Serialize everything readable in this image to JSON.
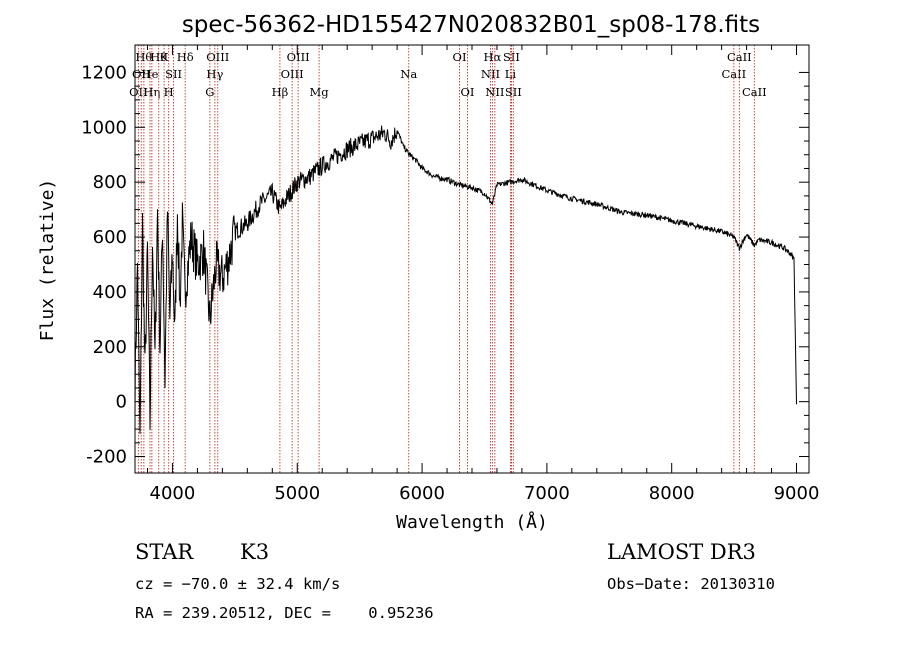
{
  "chart_data": {
    "type": "line",
    "title": "spec-56362-HD155427N020832B01_sp08-178.fits",
    "xlabel": "Wavelength (Å)",
    "ylabel": "Flux (relative)",
    "xlim": [
      3700,
      9100
    ],
    "ylim": [
      -260,
      1300
    ],
    "xticks": [
      4000,
      5000,
      6000,
      7000,
      8000,
      9000
    ],
    "yticks": [
      -200,
      0,
      200,
      400,
      600,
      800,
      1000,
      1200
    ],
    "grid": false,
    "series": [
      {
        "name": "spectrum",
        "x": [
          3700,
          3720,
          3740,
          3760,
          3780,
          3800,
          3820,
          3840,
          3860,
          3880,
          3900,
          3920,
          3940,
          3960,
          3980,
          4000,
          4020,
          4040,
          4060,
          4080,
          4100,
          4150,
          4200,
          4250,
          4300,
          4350,
          4400,
          4450,
          4500,
          4600,
          4700,
          4800,
          4861,
          4900,
          5000,
          5100,
          5200,
          5300,
          5400,
          5500,
          5600,
          5700,
          5750,
          5800,
          5850,
          5900,
          5950,
          6000,
          6100,
          6200,
          6300,
          6400,
          6500,
          6563,
          6600,
          6700,
          6800,
          6900,
          7000,
          7200,
          7400,
          7600,
          7800,
          8000,
          8200,
          8400,
          8498,
          8542,
          8600,
          8662,
          8700,
          8800,
          8900,
          8950,
          8980,
          9000
        ],
        "y": [
          50,
          500,
          -150,
          650,
          100,
          550,
          -80,
          600,
          150,
          700,
          200,
          650,
          80,
          700,
          300,
          550,
          250,
          700,
          350,
          650,
          400,
          600,
          500,
          550,
          300,
          500,
          450,
          520,
          620,
          650,
          720,
          760,
          700,
          730,
          800,
          820,
          860,
          890,
          920,
          940,
          960,
          980,
          950,
          990,
          930,
          900,
          880,
          850,
          820,
          810,
          790,
          780,
          760,
          720,
          790,
          800,
          810,
          790,
          770,
          740,
          720,
          690,
          680,
          660,
          640,
          620,
          600,
          560,
          610,
          570,
          590,
          580,
          560,
          540,
          520,
          -10
        ]
      }
    ],
    "line_markers": [
      {
        "wavelength": 3727,
        "label": "OII",
        "row": 2
      },
      {
        "wavelength": 3750,
        "label": "OII",
        "row": 1
      },
      {
        "wavelength": 3771,
        "label": "Hθ",
        "row": 0
      },
      {
        "wavelength": 3820,
        "label": "He",
        "row": 1
      },
      {
        "wavelength": 3835,
        "label": "Hη",
        "row": 2
      },
      {
        "wavelength": 3890,
        "label": "Hθ",
        "row": 0
      },
      {
        "wavelength": 3933,
        "label": "K",
        "row": 0
      },
      {
        "wavelength": 3970,
        "label": "H",
        "row": 2
      },
      {
        "wavelength": 4009,
        "label": "SII",
        "row": 1
      },
      {
        "wavelength": 4102,
        "label": "Hδ",
        "row": 0
      },
      {
        "wavelength": 4300,
        "label": "G",
        "row": 2
      },
      {
        "wavelength": 4340,
        "label": "Hγ",
        "row": 1
      },
      {
        "wavelength": 4363,
        "label": "OIII",
        "row": 0
      },
      {
        "wavelength": 4861,
        "label": "Hβ",
        "row": 2
      },
      {
        "wavelength": 4959,
        "label": "OIII",
        "row": 1
      },
      {
        "wavelength": 5007,
        "label": "OIII",
        "row": 0
      },
      {
        "wavelength": 5175,
        "label": "Mg",
        "row": 2
      },
      {
        "wavelength": 5893,
        "label": "Na",
        "row": 1
      },
      {
        "wavelength": 6300,
        "label": "OI",
        "row": 0
      },
      {
        "wavelength": 6364,
        "label": "OI",
        "row": 2
      },
      {
        "wavelength": 6548,
        "label": "NII",
        "row": 1
      },
      {
        "wavelength": 6563,
        "label": "Hα",
        "row": 0
      },
      {
        "wavelength": 6583,
        "label": "NII",
        "row": 2
      },
      {
        "wavelength": 6708,
        "label": "Li",
        "row": 1
      },
      {
        "wavelength": 6716,
        "label": "SII",
        "row": 0
      },
      {
        "wavelength": 6731,
        "label": "SII",
        "row": 2
      },
      {
        "wavelength": 8498,
        "label": "CaII",
        "row": 1
      },
      {
        "wavelength": 8542,
        "label": "CaII",
        "row": 0
      },
      {
        "wavelength": 8662,
        "label": "CaII",
        "row": 2
      }
    ]
  },
  "info": {
    "object_class": "STAR",
    "subclass": "K3",
    "survey": "LAMOST DR3",
    "cz": "cz = −70.0 ± 32.4 km/s",
    "obs_date": "Obs−Date: 20130310",
    "coords": "RA = 239.20512, DEC =    0.95236"
  },
  "colors": {
    "spectrum": "#000000",
    "marker": "#c0392b",
    "background": "#ffffff"
  }
}
